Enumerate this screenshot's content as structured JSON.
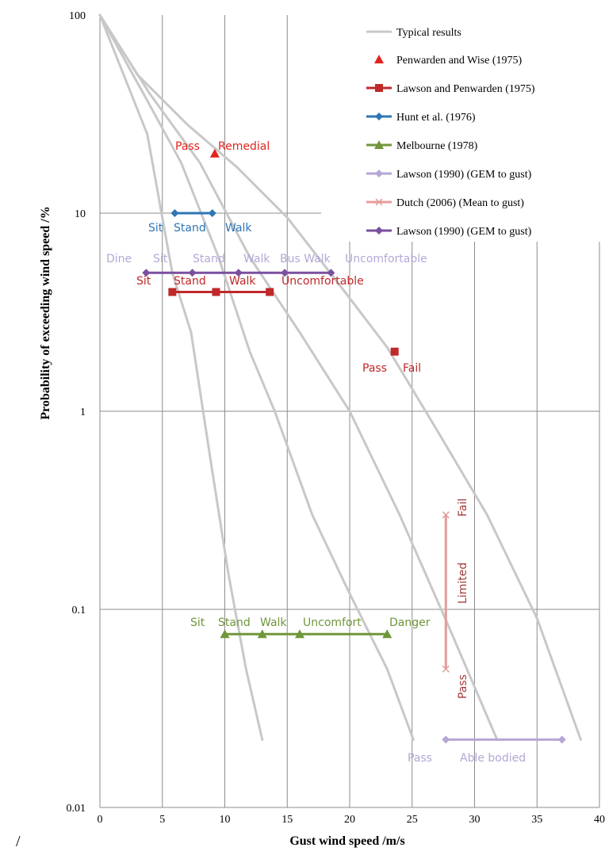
{
  "chart_data": {
    "type": "line",
    "xlabel": "Gust wind speed /m/s",
    "ylabel": "Probability of exceeding wind speed /%",
    "x_scale": "linear",
    "y_scale": "log",
    "xlim": [
      0,
      40
    ],
    "ylim": [
      0.01,
      100
    ],
    "x_ticks": [
      "0",
      "5",
      "10",
      "15",
      "20",
      "25",
      "30",
      "35",
      "40"
    ],
    "y_ticks": [
      "0.01",
      "0.1",
      "1",
      "10",
      "100"
    ],
    "grid": true,
    "legend_position": "top-right",
    "colors": {
      "typical": "#c8c8c8",
      "penwarden_wise": "#e3231c",
      "lawson_penwarden": "#c0282a",
      "hunt": "#2e75b6",
      "melbourne": "#70963a",
      "lawson1990_light": "#b4a7d6",
      "dutch": "#e49c9a",
      "lawson1990_dark": "#7a4f9e"
    },
    "typical_results": [
      {
        "x": [
          0,
          3.8,
          5.8,
          7.3,
          8.8,
          10.3,
          11.7,
          13.0
        ],
        "y": [
          100,
          25,
          5,
          2.5,
          0.6,
          0.15,
          0.05,
          0.022
        ]
      },
      {
        "x": [
          0,
          3.5,
          6.5,
          9.5,
          12,
          14,
          17,
          20,
          23,
          25.1
        ],
        "y": [
          100,
          40,
          18,
          6,
          2,
          1,
          0.3,
          0.12,
          0.05,
          0.022
        ]
      },
      {
        "x": [
          0,
          4,
          8,
          12,
          16,
          20,
          24,
          28,
          31.8
        ],
        "y": [
          100,
          40,
          18,
          6,
          2.5,
          1,
          0.3,
          0.08,
          0.022
        ]
      },
      {
        "x": [
          0,
          3,
          7,
          11,
          15,
          19,
          23,
          27,
          31,
          35,
          38.5
        ],
        "y": [
          100,
          50,
          28,
          17,
          9.5,
          4.5,
          2.1,
          0.8,
          0.3,
          0.09,
          0.022
        ]
      }
    ],
    "series": [
      {
        "name": "Typical results",
        "marker": "line"
      },
      {
        "name": "Penwarden and Wise (1975)",
        "marker": "triangle",
        "line": false,
        "points": [
          {
            "x": 9.2,
            "y": 20
          }
        ],
        "labels": [
          "Pass",
          "Remedial"
        ]
      },
      {
        "name": "Lawson and Penwarden (1975)",
        "marker": "square",
        "line": true,
        "points": [
          {
            "x": 5.8,
            "y": 4
          },
          {
            "x": 9.3,
            "y": 4
          },
          {
            "x": 13.6,
            "y": 4
          }
        ],
        "labels": [
          "Sit",
          "Stand",
          "Walk",
          "Uncomfortable"
        ],
        "extra_points": [
          {
            "x": 23.6,
            "y": 2
          }
        ],
        "extra_labels": [
          "Pass",
          "Fail"
        ]
      },
      {
        "name": "Hunt et al. (1976)",
        "marker": "diamond",
        "line": true,
        "points": [
          {
            "x": 6,
            "y": 10
          },
          {
            "x": 9,
            "y": 10
          }
        ],
        "labels": [
          "Sit",
          "Stand",
          "Walk"
        ]
      },
      {
        "name": "Melbourne (1978)",
        "marker": "triangle",
        "line": true,
        "points": [
          {
            "x": 10,
            "y": 0.075
          },
          {
            "x": 13,
            "y": 0.075
          },
          {
            "x": 16,
            "y": 0.075
          },
          {
            "x": 23,
            "y": 0.075
          }
        ],
        "labels": [
          "Sit",
          "Stand",
          "Walk",
          "Uncomfort",
          "Danger"
        ]
      },
      {
        "name": "Lawson (1990) (GEM to gust)",
        "marker": "diamond",
        "line": true,
        "points": [
          {
            "x": 27.7,
            "y": 0.022
          },
          {
            "x": 37.0,
            "y": 0.022
          }
        ],
        "labels": [
          "Pass",
          "Able bodied"
        ]
      },
      {
        "name": "Dutch (2006) (Mean to gust)",
        "marker": "x",
        "line": true,
        "points": [
          {
            "x": 27.7,
            "y": 0.3
          },
          {
            "x": 27.7,
            "y": 0.05
          }
        ],
        "labels": [
          "Fail",
          "Limited",
          "Pass"
        ]
      },
      {
        "name": "Lawson (1990) (GEM to gust)",
        "marker": "diamond",
        "line": true,
        "points": [
          {
            "x": 3.7,
            "y": 5
          },
          {
            "x": 7.4,
            "y": 5
          },
          {
            "x": 11.1,
            "y": 5
          },
          {
            "x": 14.8,
            "y": 5
          },
          {
            "x": 18.5,
            "y": 5
          }
        ],
        "labels": [
          "Dine",
          "Sit",
          "Stand",
          "Walk",
          "Bus Walk",
          "Uncomfortable"
        ]
      }
    ]
  },
  "corner_mark": "/"
}
